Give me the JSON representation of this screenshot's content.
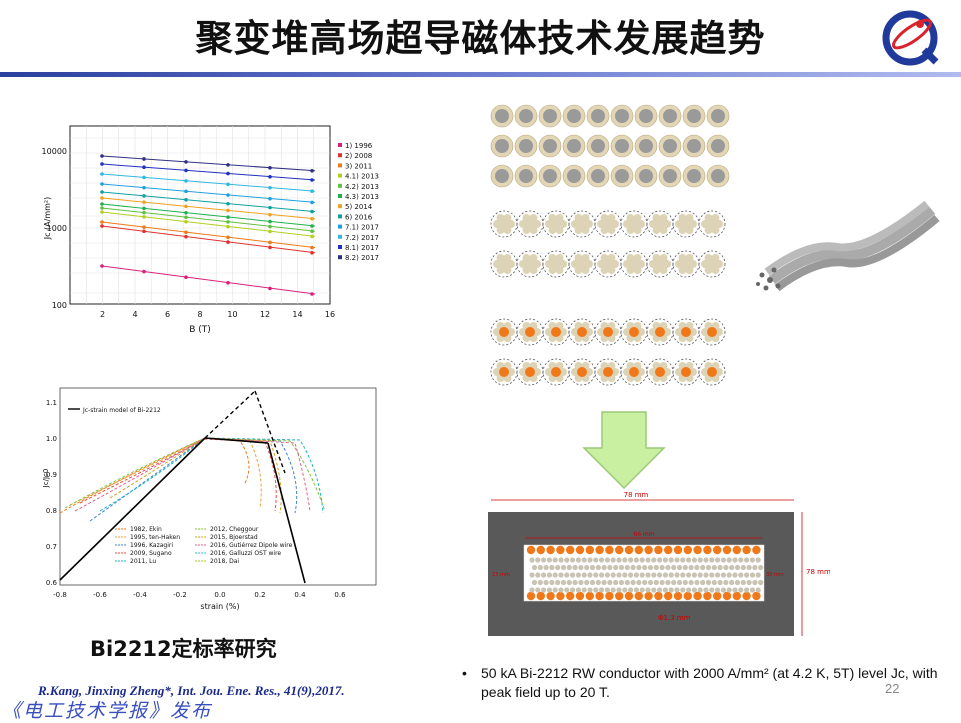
{
  "title": "聚变堆高场超导磁体技术发展趋势",
  "jc_chart": {
    "ylabel": "Jc (A/mm²)",
    "xlabel": "B (T)",
    "x_ticks": [
      "2",
      "4",
      "6",
      "8",
      "10",
      "12",
      "14",
      "16"
    ],
    "y_ticks": [
      "10000",
      "1000",
      "100"
    ],
    "legend": [
      "1) 1996",
      "2) 2008",
      "3) 2011",
      "4.1) 2013",
      "4.2) 2013",
      "4.3) 2013",
      "5) 2014",
      "6) 2016",
      "7.1) 2017",
      "7.2) 2017",
      "8.1) 2017",
      "8.2) 2017"
    ]
  },
  "strain_chart": {
    "xlabel": "strain (%)",
    "ylabel": "Jc/Jc0",
    "x_ticks": [
      "-0.8",
      "-0.6",
      "-0.4",
      "-0.2",
      "0.0",
      "0.2",
      "0.4",
      "0.6"
    ],
    "y_ticks": [
      "1.1",
      "1.0",
      "0.9",
      "0.8",
      "0.7",
      "0.6"
    ],
    "model_label": "Jc-strain model of Bi-2212",
    "legend_left": [
      "1982, Ekin",
      "1995, ten-Haken",
      "1996, Kazagiri",
      "2009, Sugano",
      "2011, Lu"
    ],
    "legend_right": [
      "2012, Cheggour",
      "2015, Bjoerstad",
      "2016, Gutiérrez Dipole wire",
      "2016, Galluzzi OST wire",
      "2018, Dai"
    ]
  },
  "cross_section": {
    "width_label": "78 mm",
    "height_label": "78 mm",
    "inner_width_label": "66 mm",
    "inner_height_label": "30 mm",
    "side_label": "23 mm",
    "bottom_label": "Φ1.3 mm"
  },
  "caption_bi2212": "Bi2212定标率研究",
  "reference": "R.Kang, Jinxing Zheng*, Int. Jou. Ene. Res., 41(9),2017.",
  "bullet_text": "50 kA Bi-2212 RW conductor with 2000 A/mm² (at 4.2 K, 5T) level Jc, with peak field up to 20 T.",
  "page_number": "22",
  "publisher": "《电工技术学报》发布",
  "colors": {
    "accent": "#2a3f9e",
    "orange": "#f07818",
    "arrow": "#c8f0a0"
  }
}
